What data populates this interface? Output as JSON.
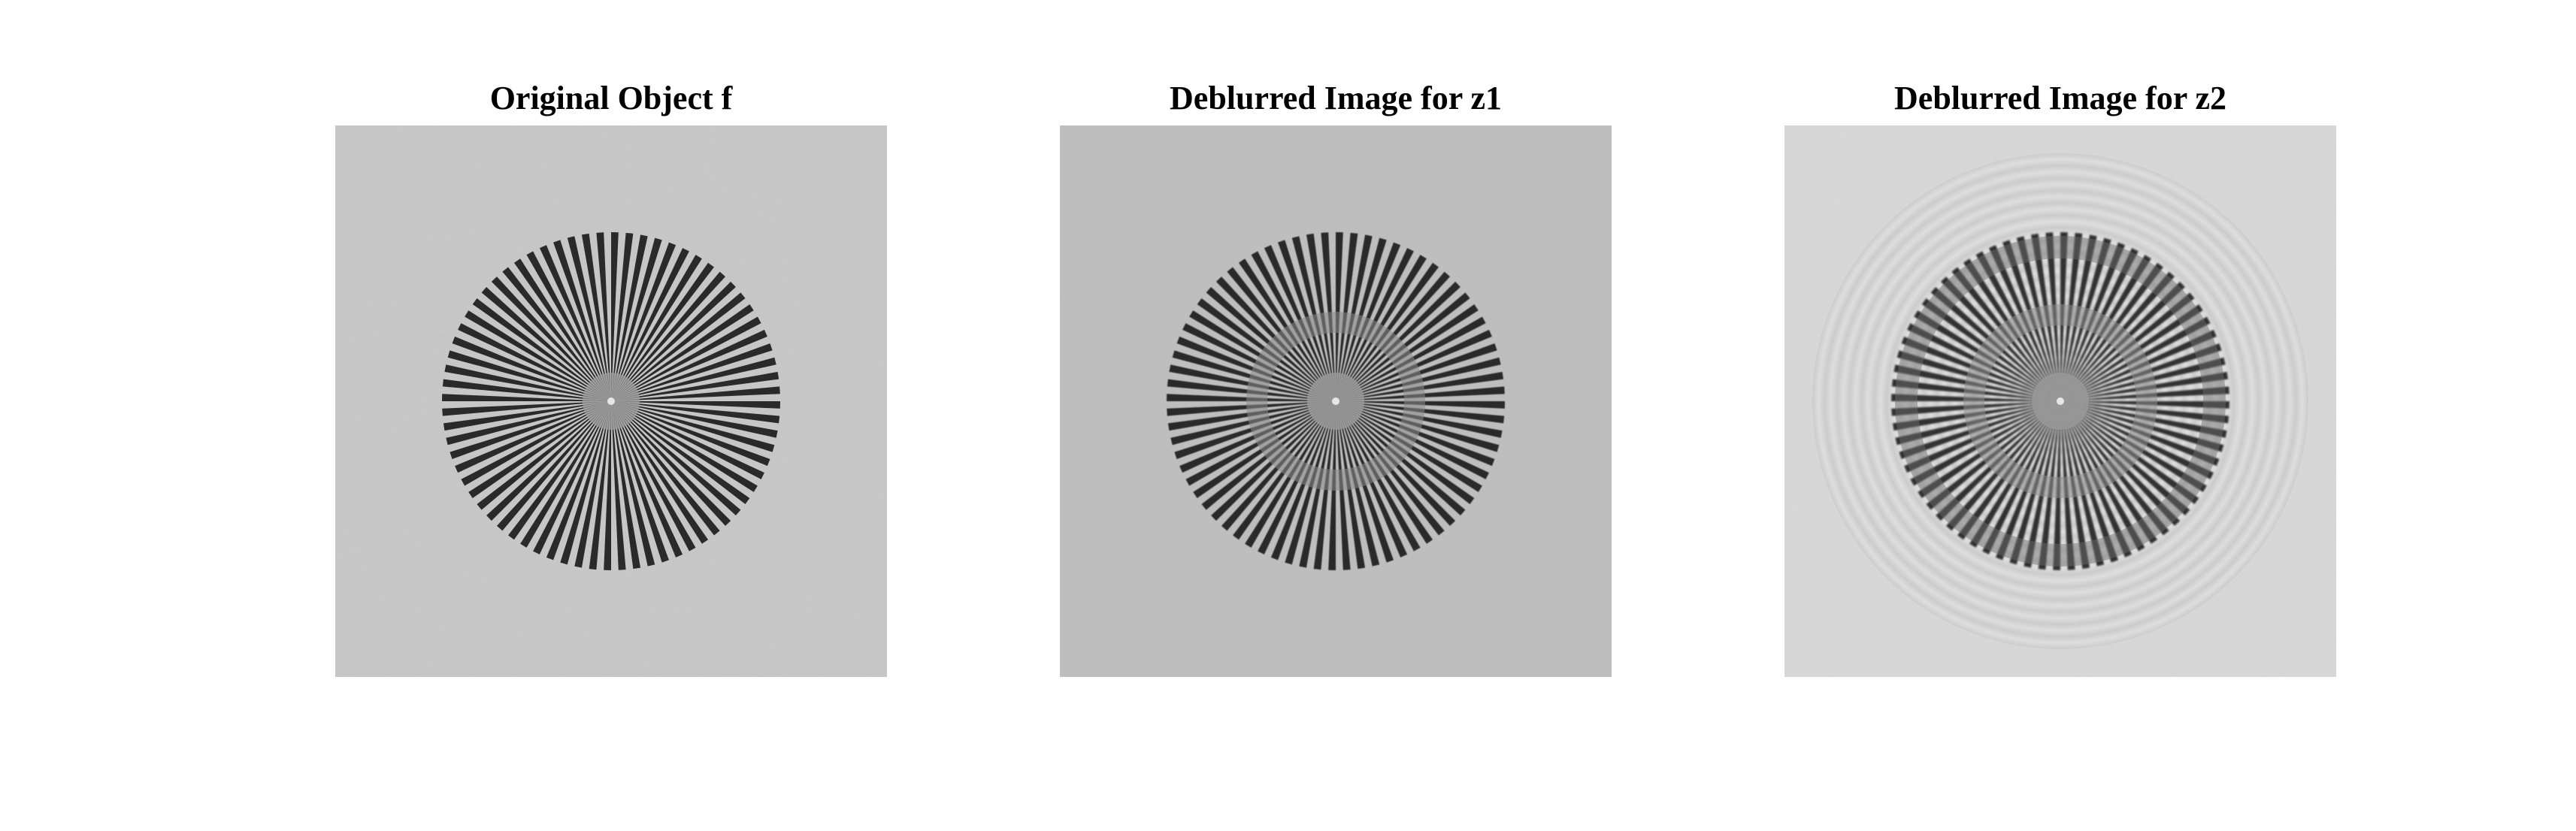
{
  "panels": [
    {
      "title": "Original Object f",
      "variant": "original",
      "background": "#c7c7c7",
      "bar_color": "#2b2b2b"
    },
    {
      "title": "Deblurred Image for z1",
      "variant": "deblur1",
      "background": "#bebebe",
      "bar_color": "#2a2a2a"
    },
    {
      "title": "Deblurred Image for z2",
      "variant": "deblur2",
      "background": "#d8d8d8",
      "bar_color": "#333333"
    }
  ],
  "spokes": 72
}
